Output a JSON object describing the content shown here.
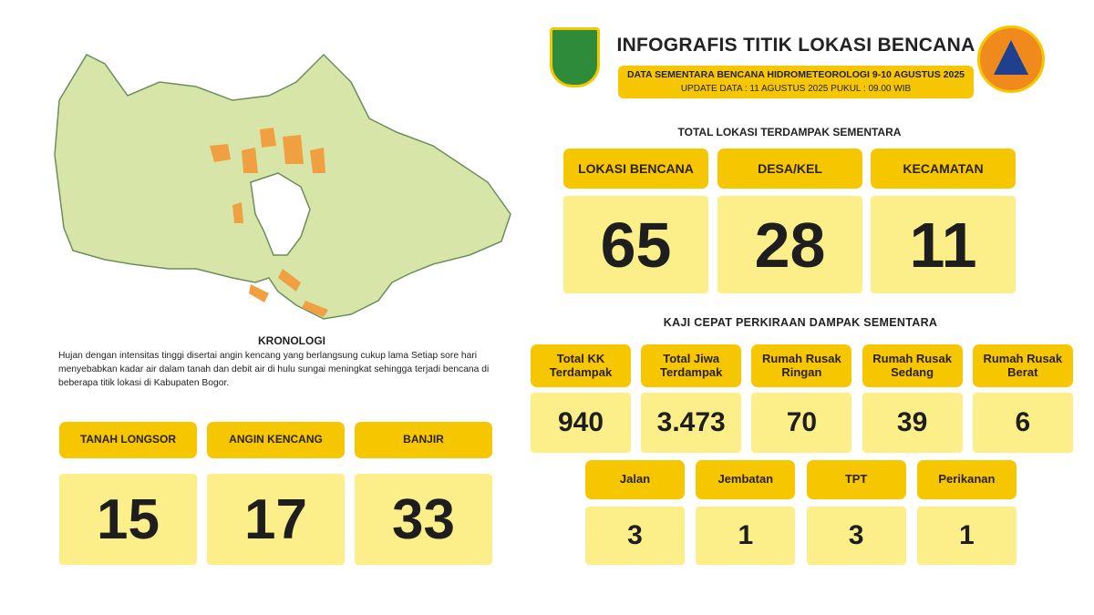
{
  "header": {
    "title": "INFOGRAFIS TITIK LOKASI BENCANA",
    "subtitle": "DATA SEMENTARA BENCANA HIDROMETEOROLOGI 9-10 AGUSTUS 2025",
    "update": "UPDATE DATA : 11 AGUSTUS 2025 PUKUL : 09.00 WIB"
  },
  "kronologi": {
    "title": "KRONOLOGI",
    "text": "Hujan dengan intensitas tinggi disertai angin kencang yang berlangsung cukup lama Setiap sore hari menyebabkan kadar air dalam tanah dan debit air di hulu sungai meningkat sehingga terjadi bencana di beberapa titik lokasi di Kabupaten Bogor."
  },
  "disasters": [
    {
      "label": "TANAH LONGSOR",
      "value": 15
    },
    {
      "label": "ANGIN KENCANG",
      "value": 17
    },
    {
      "label": "BANJIR",
      "value": 33
    }
  ],
  "total": {
    "title": "TOTAL LOKASI TERDAMPAK SEMENTARA",
    "items": [
      {
        "label": "LOKASI BENCANA",
        "value": 65
      },
      {
        "label": "DESA/KEL",
        "value": 28
      },
      {
        "label": "KECAMATAN",
        "value": 11
      }
    ]
  },
  "impact": {
    "title": "KAJI CEPAT PERKIRAAN DAMPAK SEMENTARA",
    "row1": [
      {
        "label": "Total KK Terdampak",
        "value": 940
      },
      {
        "label": "Total Jiwa Terdampak",
        "value": "3.473"
      },
      {
        "label": "Rumah Rusak Ringan",
        "value": 70
      },
      {
        "label": "Rumah Rusak Sedang",
        "value": 39
      },
      {
        "label": "Rumah Rusak Berat",
        "value": 6
      }
    ],
    "row2": [
      {
        "label": "Jalan",
        "value": 3
      },
      {
        "label": "Jembatan",
        "value": 1
      },
      {
        "label": "TPT",
        "value": 3
      },
      {
        "label": "Perikanan",
        "value": 1
      }
    ]
  }
}
